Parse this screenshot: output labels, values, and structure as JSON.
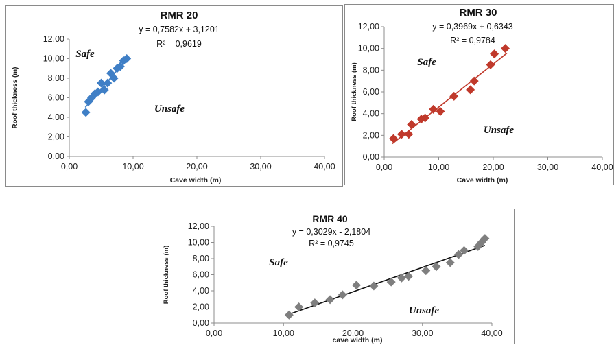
{
  "chart_data": [
    {
      "type": "scatter",
      "title": "RMR 20",
      "equation": "y = 0,7582x + 3,1201",
      "r2": "R² = 0,9619",
      "xlabel": "Cave width (m)",
      "ylabel": "Roof thickness (m)",
      "xlim": [
        0,
        40
      ],
      "ylim": [
        0,
        12
      ],
      "x_ticks": [
        "0,00",
        "10,00",
        "20,00",
        "30,00",
        "40,00"
      ],
      "y_ticks": [
        "0,00",
        "2,00",
        "4,00",
        "6,00",
        "8,00",
        "10,00",
        "12,00"
      ],
      "region_labels": {
        "upper": "Safe",
        "lower": "Unsafe"
      },
      "trendline": {
        "slope": 0.7582,
        "intercept": 3.1201,
        "x_range": [
          2.5,
          9.3
        ]
      },
      "color": "#3f7fc6",
      "x": [
        2.6,
        3.0,
        3.5,
        4.0,
        4.5,
        5.0,
        5.5,
        6.0,
        6.5,
        7.0,
        7.5,
        8.0,
        8.5,
        9.0
      ],
      "y": [
        4.5,
        5.6,
        6.0,
        6.4,
        6.6,
        7.5,
        6.8,
        7.5,
        8.5,
        8.0,
        9.0,
        9.2,
        9.8,
        10.0
      ]
    },
    {
      "type": "scatter",
      "title": "RMR 30",
      "equation": "y = 0,3969x + 0,6343",
      "r2": "R² = 0,9784",
      "xlabel": "Cave width (m)",
      "ylabel": "Roof thickness (m)",
      "xlim": [
        0,
        40
      ],
      "ylim": [
        0,
        12
      ],
      "x_ticks": [
        "0,00",
        "10,00",
        "20,00",
        "30,00",
        "40,00"
      ],
      "y_ticks": [
        "0,00",
        "2,00",
        "4,00",
        "6,00",
        "8,00",
        "10,00",
        "12,00"
      ],
      "region_labels": {
        "upper": "Safe",
        "lower": "Unsafe"
      },
      "trendline": {
        "slope": 0.3969,
        "intercept": 0.6343,
        "x_range": [
          1.5,
          22.5
        ]
      },
      "color": "#c0392b",
      "x": [
        1.7,
        3.2,
        4.5,
        5.0,
        6.8,
        7.5,
        9.0,
        10.3,
        12.8,
        15.8,
        16.5,
        19.5,
        20.2,
        22.2
      ],
      "y": [
        1.7,
        2.1,
        2.1,
        3.0,
        3.5,
        3.6,
        4.4,
        4.2,
        5.6,
        6.2,
        7.0,
        8.5,
        9.5,
        10.0
      ]
    },
    {
      "type": "scatter",
      "title": "RMR 40",
      "equation": "y = 0,3029x - 2,1804",
      "r2": "R² = 0,9745",
      "xlabel": "cave width (m)",
      "ylabel": "Roof thickness (m)",
      "xlim": [
        0,
        40
      ],
      "ylim": [
        0,
        12
      ],
      "x_ticks": [
        "0,00",
        "10,00",
        "20,00",
        "30,00",
        "40,00"
      ],
      "y_ticks": [
        "0,00",
        "2,00",
        "4,00",
        "6,00",
        "8,00",
        "10,00",
        "12,00"
      ],
      "region_labels": {
        "upper": "Safe",
        "lower": "Unsafe"
      },
      "trendline": {
        "slope": 0.3029,
        "intercept": -2.1804,
        "x_range": [
          10.5,
          39
        ]
      },
      "color": "#7f7f7f",
      "x": [
        10.8,
        12.2,
        14.5,
        16.7,
        18.5,
        20.5,
        23.0,
        25.5,
        27.0,
        28.0,
        30.5,
        32.0,
        34.0,
        35.2,
        36.0,
        38.0,
        38.5,
        39.0
      ],
      "y": [
        1.0,
        2.0,
        2.5,
        2.9,
        3.5,
        4.7,
        4.6,
        5.1,
        5.6,
        5.8,
        6.5,
        7.0,
        7.5,
        8.5,
        9.0,
        9.5,
        10.0,
        10.5
      ]
    }
  ]
}
